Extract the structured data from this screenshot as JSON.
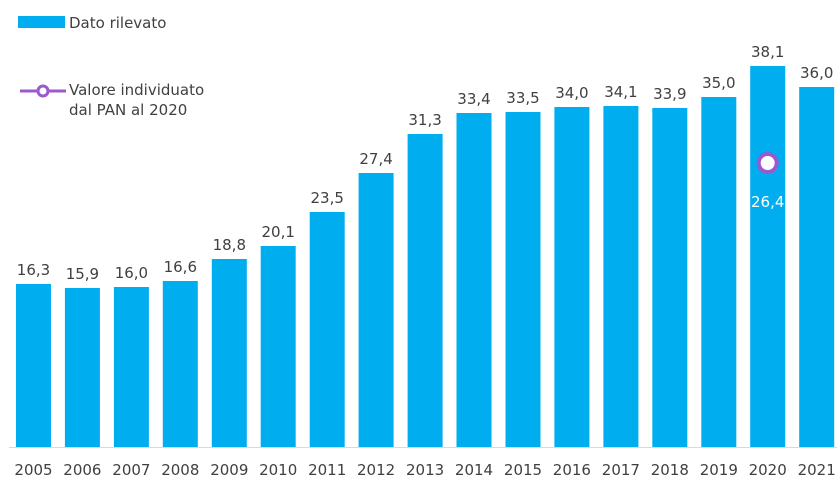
{
  "chart_data": {
    "type": "bar",
    "categories": [
      "2005",
      "2006",
      "2007",
      "2008",
      "2009",
      "2010",
      "2011",
      "2012",
      "2013",
      "2014",
      "2015",
      "2016",
      "2017",
      "2018",
      "2019",
      "2020",
      "2021"
    ],
    "series": [
      {
        "name": "Dato rilevato",
        "values": [
          16.3,
          15.9,
          16.0,
          16.6,
          18.8,
          20.1,
          23.5,
          27.4,
          31.3,
          33.4,
          33.5,
          34.0,
          34.1,
          33.9,
          35.0,
          38.1,
          36.0
        ],
        "labels": [
          "16,3",
          "15,9",
          "16,0",
          "16,6",
          "18,8",
          "20,1",
          "23,5",
          "27,4",
          "31,3",
          "33,4",
          "33,5",
          "34,0",
          "34,1",
          "33,9",
          "35,0",
          "38,1",
          "36,0"
        ],
        "color": "#00ADEF"
      },
      {
        "name": "Valore individuato dal PAN al 2020",
        "name_lines": [
          "Valore individuato",
          "dal PAN al 2020"
        ],
        "type": "point",
        "category": "2020",
        "value": 26.4,
        "label": "26,4",
        "color": "#9B59D0"
      }
    ],
    "ylim": [
      0,
      40
    ],
    "title": "",
    "xlabel": "",
    "ylabel": "",
    "grid": false,
    "legend": "top-left"
  }
}
